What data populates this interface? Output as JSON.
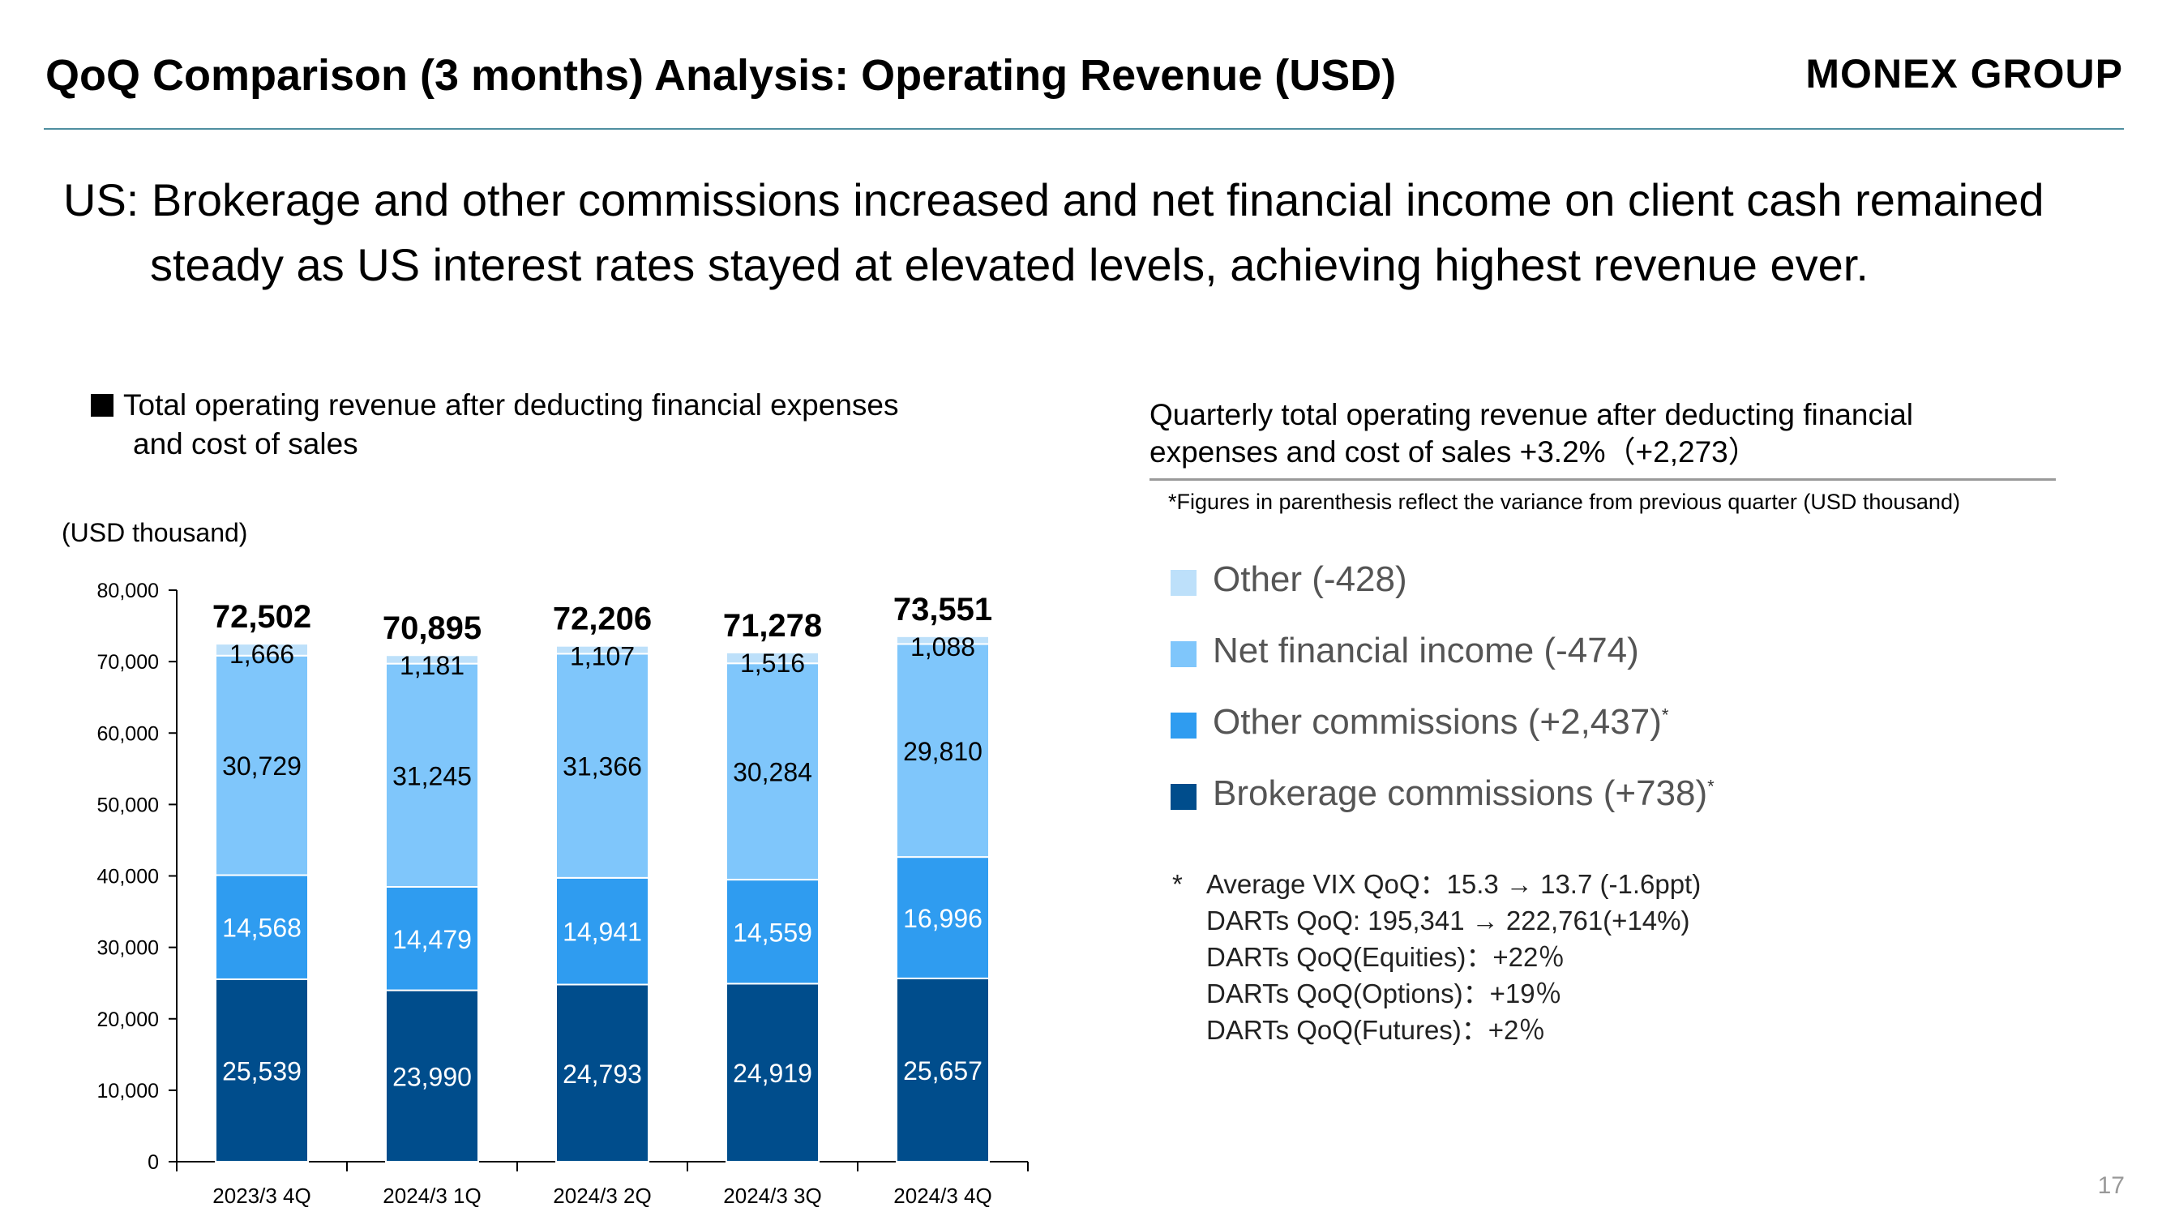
{
  "slide": {
    "title": "QoQ Comparison (3 months) Analysis: Operating Revenue (USD)",
    "brand": "MONEX GROUP",
    "headline_line1": "US: Brokerage and other commissions increased and net financial income on client cash remained",
    "headline_line2": "steady as US interest rates stayed at elevated levels, achieving highest revenue ever.",
    "page_number": "17"
  },
  "left_panel": {
    "legend_title_line1": "Total operating revenue after deducting financial expenses",
    "legend_title_line2": "and cost of sales",
    "unit": "(USD thousand)"
  },
  "right_panel": {
    "title_line1": "Quarterly total operating revenue after deducting financial",
    "title_line2": "expenses and cost of sales +3.2%（+2,273）",
    "paren_note": "*Figures in parenthesis reflect the variance from previous quarter (USD thousand)",
    "legend": [
      {
        "label": "Other (-428)",
        "color": "#bde0fa",
        "star": ""
      },
      {
        "label": "Net financial income (-474)",
        "color": "#7fc6fb",
        "star": ""
      },
      {
        "label": "Other commissions (+2,437)",
        "color": "#2f9cf0",
        "star": "*"
      },
      {
        "label": "Brokerage commissions (+738)",
        "color": "#004d8c",
        "star": "*"
      }
    ],
    "notes": {
      "star": "*",
      "line1": "Average VIX QoQ：15.3 → 13.7 (-1.6ppt)",
      "line2": "DARTs QoQ: 195,341 → 222,761(+14%)",
      "line3": "DARTs QoQ(Equities)：+22％",
      "line4": "DARTs QoQ(Options)：+19％",
      "line5": "DARTs QoQ(Futures)：+2％"
    }
  },
  "chart_data": {
    "type": "bar",
    "stacked": true,
    "categories": [
      "2023/3 4Q",
      "2024/3 1Q",
      "2024/3 2Q",
      "2024/3 3Q",
      "2024/3 4Q"
    ],
    "series": [
      {
        "name": "Brokerage commissions",
        "color": "#004d8c",
        "label_color": "#ffffff",
        "values": [
          25539,
          23990,
          24793,
          24919,
          25657
        ],
        "labels": [
          "25,539",
          "23,990",
          "24,793",
          "24,919",
          "25,657"
        ]
      },
      {
        "name": "Other commissions",
        "color": "#2f9cf0",
        "label_color": "#ffffff",
        "values": [
          14568,
          14479,
          14941,
          14559,
          16996
        ],
        "labels": [
          "14,568",
          "14,479",
          "14,941",
          "14,559",
          "16,996"
        ]
      },
      {
        "name": "Net financial income",
        "color": "#7fc6fb",
        "label_color": "#000000",
        "values": [
          30729,
          31245,
          31366,
          30284,
          29810
        ],
        "labels": [
          "30,729",
          "31,245",
          "31,366",
          "30,284",
          "29,810"
        ]
      },
      {
        "name": "Other",
        "color": "#bde0fa",
        "label_color": "#000000",
        "values": [
          1666,
          1181,
          1107,
          1516,
          1088
        ],
        "labels": [
          "1,666",
          "1,181",
          "1,107",
          "1,516",
          "1,088"
        ]
      }
    ],
    "totals": [
      72502,
      70895,
      72206,
      71278,
      73551
    ],
    "total_labels": [
      "72,502",
      "70,895",
      "72,206",
      "71,278",
      "73,551"
    ],
    "yticks": [
      0,
      10000,
      20000,
      30000,
      40000,
      50000,
      60000,
      70000,
      80000
    ],
    "ytick_labels": [
      "0",
      "10,000",
      "20,000",
      "30,000",
      "40,000",
      "50,000",
      "60,000",
      "70,000",
      "80,000"
    ],
    "ylim": [
      0,
      80000
    ],
    "ylabel": "(USD thousand)",
    "grid": false,
    "legend": "right"
  }
}
